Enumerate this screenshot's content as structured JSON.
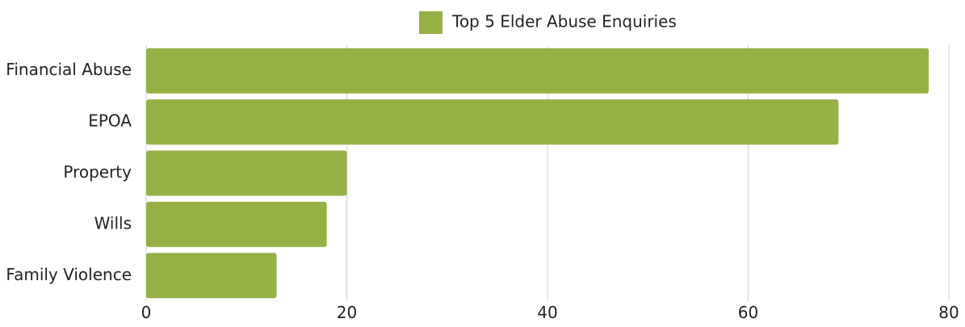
{
  "chart_data": {
    "type": "bar",
    "orientation": "horizontal",
    "categories": [
      "Financial Abuse",
      "EPOA",
      "Property",
      "Wills",
      "Family Violence"
    ],
    "series": [
      {
        "name": "Top 5 Elder Abuse Enquiries",
        "values": [
          78,
          69,
          20,
          18,
          13
        ],
        "color": "#95b045"
      }
    ],
    "xlabel": "",
    "ylabel": "",
    "xlim": [
      0,
      80
    ],
    "xticks": [
      0,
      20,
      40,
      60,
      80
    ],
    "grid": true,
    "legend": "top-center",
    "colors": {
      "bar": "#95b045",
      "grid": "#d0d0d0",
      "text": "#222222"
    }
  }
}
